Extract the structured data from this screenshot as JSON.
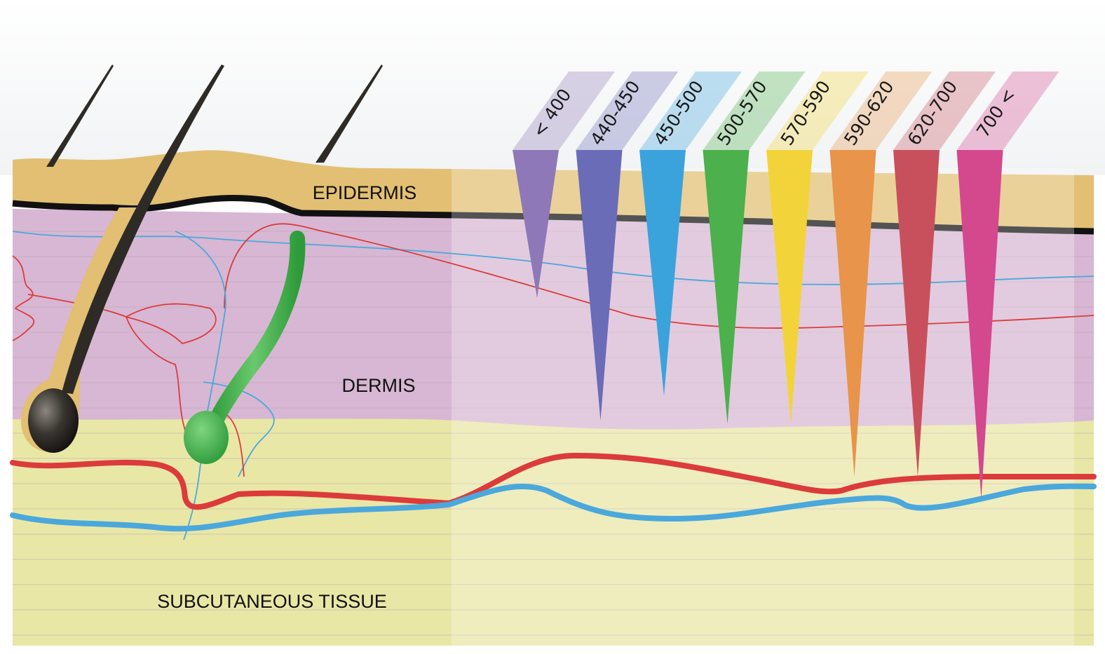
{
  "layers": {
    "epidermis": "EPIDERMIS",
    "dermis": "DERMIS",
    "subcutaneous": "SUBCUTANEOUS TISSUE"
  },
  "wavelength_bands": [
    {
      "label": "< 400",
      "color": "#8e78b8",
      "depth_level": 1
    },
    {
      "label": "440-450",
      "color": "#6a6cb8",
      "depth_level": 4
    },
    {
      "label": "450-500",
      "color": "#3aa3dc",
      "depth_level": 3
    },
    {
      "label": "500-570",
      "color": "#4cb04c",
      "depth_level": 5
    },
    {
      "label": "570-590",
      "color": "#f2d43a",
      "depth_level": 5
    },
    {
      "label": "590-620",
      "color": "#e8944a",
      "depth_level": 6
    },
    {
      "label": "620-700",
      "color": "#c8505c",
      "depth_level": 6
    },
    {
      "label": "700 <",
      "color": "#d4488e",
      "depth_level": 7
    }
  ],
  "colors": {
    "epidermis": "#e2bf72",
    "dermis": "#d7b7d3",
    "subcutaneous": "#e9e7a6",
    "artery": "#dc3b3b",
    "vein": "#4aa8dc",
    "gland": "#3fae4a",
    "hair": "#2e2b26"
  }
}
